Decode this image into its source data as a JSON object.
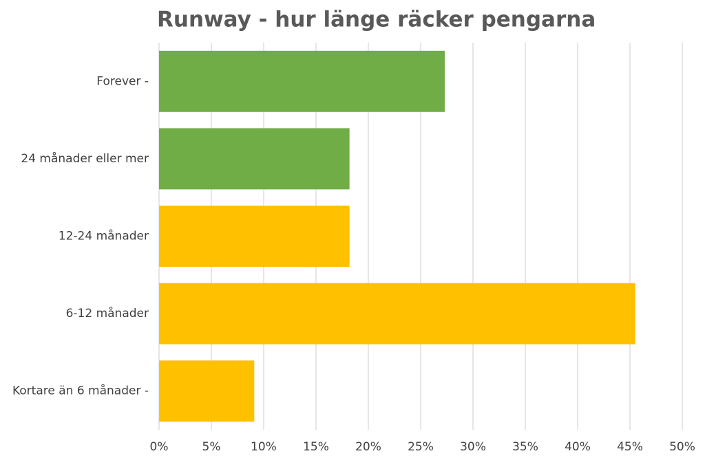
{
  "chart_data": {
    "type": "bar",
    "orientation": "horizontal",
    "title": "Runway - hur länge räcker pengarna",
    "categories": [
      "Forever -",
      "24 månader eller mer",
      "12-24 månader",
      "6-12 månader",
      "Kortare än 6 månader -"
    ],
    "values": [
      27.3,
      18.2,
      18.2,
      45.5,
      9.1
    ],
    "colors": [
      "#70ad47",
      "#70ad47",
      "#ffc000",
      "#ffc000",
      "#ffc000"
    ],
    "xlim": [
      0,
      50
    ],
    "xticks": [
      {
        "value": 0,
        "label": "0%"
      },
      {
        "value": 5,
        "label": "5%"
      },
      {
        "value": 10,
        "label": "10%"
      },
      {
        "value": 15,
        "label": "15%"
      },
      {
        "value": 20,
        "label": "20%"
      },
      {
        "value": 25,
        "label": "25%"
      },
      {
        "value": 30,
        "label": "30%"
      },
      {
        "value": 35,
        "label": "35%"
      },
      {
        "value": 40,
        "label": "40%"
      },
      {
        "value": 45,
        "label": "45%"
      },
      {
        "value": 50,
        "label": "50%"
      }
    ],
    "grid": true
  }
}
